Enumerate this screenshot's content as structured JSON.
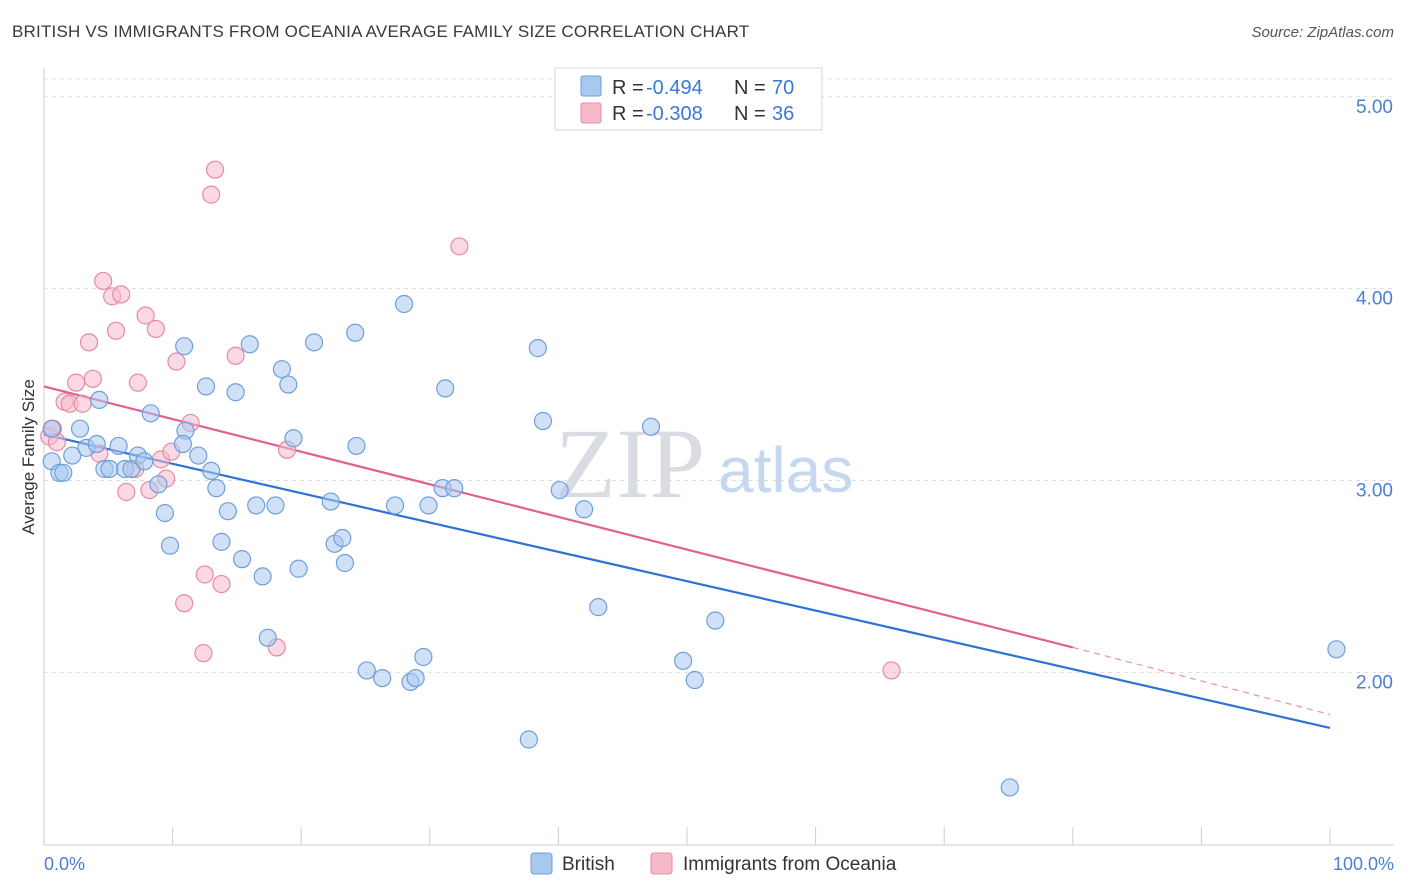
{
  "title": "BRITISH VS IMMIGRANTS FROM OCEANIA AVERAGE FAMILY SIZE CORRELATION CHART",
  "source": "Source: ZipAtlas.com",
  "watermark": {
    "zip": "ZIP",
    "atlas": "atlas"
  },
  "legend_top": {
    "rows": [
      {
        "r_label": "R = ",
        "r_value": "-0.494",
        "n_label": "N = ",
        "n_value": "70"
      },
      {
        "r_label": "R = ",
        "r_value": "-0.308",
        "n_label": "N = ",
        "n_value": "36"
      }
    ]
  },
  "colors": {
    "british_fill": "#a9c8f0",
    "british_stroke": "#6f9fd8",
    "british_line": "#2f72d4",
    "oceania_fill": "#f6b9ca",
    "oceania_stroke": "#e88aa6",
    "oceania_line": "#e0608e",
    "grid": "#d8dde5",
    "tick_label": "#4a7fd0"
  },
  "chart_data": {
    "type": "scatter",
    "title": "BRITISH VS IMMIGRANTS FROM OCEANIA AVERAGE FAMILY SIZE CORRELATION CHART",
    "xlabel": "",
    "ylabel": "Average Family Size",
    "xlim": [
      0,
      100
    ],
    "ylim": [
      1.1,
      5.15
    ],
    "x_tick_labels": [
      "0.0%",
      "100.0%"
    ],
    "y_ticks": [
      2.0,
      3.0,
      4.0,
      5.0
    ],
    "y_tick_labels": [
      "2.00",
      "3.00",
      "4.00",
      "5.00"
    ],
    "grid": true,
    "legend_position": "top-center",
    "series": [
      {
        "name": "British",
        "r": -0.494,
        "n": 70,
        "trend": {
          "x0": 0,
          "y0": 3.24,
          "x1": 100,
          "y1": 1.71
        },
        "points": [
          [
            0.6,
            3.27
          ],
          [
            0.6,
            3.1
          ],
          [
            1.2,
            3.04
          ],
          [
            1.5,
            3.04
          ],
          [
            2.2,
            3.13
          ],
          [
            2.8,
            3.27
          ],
          [
            3.3,
            3.17
          ],
          [
            4.1,
            3.19
          ],
          [
            4.3,
            3.42
          ],
          [
            4.7,
            3.06
          ],
          [
            5.1,
            3.06
          ],
          [
            5.8,
            3.18
          ],
          [
            6.3,
            3.06
          ],
          [
            6.8,
            3.06
          ],
          [
            7.3,
            3.13
          ],
          [
            7.8,
            3.1
          ],
          [
            8.3,
            3.35
          ],
          [
            8.9,
            2.98
          ],
          [
            9.4,
            2.83
          ],
          [
            9.8,
            2.66
          ],
          [
            10.9,
            3.7
          ],
          [
            11.0,
            3.26
          ],
          [
            10.8,
            3.19
          ],
          [
            12.0,
            3.13
          ],
          [
            12.6,
            3.49
          ],
          [
            13.0,
            3.05
          ],
          [
            13.4,
            2.96
          ],
          [
            13.8,
            2.68
          ],
          [
            14.3,
            2.84
          ],
          [
            14.9,
            3.46
          ],
          [
            15.4,
            2.59
          ],
          [
            16.0,
            3.71
          ],
          [
            16.5,
            2.87
          ],
          [
            17.0,
            2.5
          ],
          [
            17.4,
            2.18
          ],
          [
            18.0,
            2.87
          ],
          [
            18.5,
            3.58
          ],
          [
            19.0,
            3.5
          ],
          [
            19.4,
            3.22
          ],
          [
            19.8,
            2.54
          ],
          [
            21.0,
            3.72
          ],
          [
            22.3,
            2.89
          ],
          [
            22.6,
            2.67
          ],
          [
            23.2,
            2.7
          ],
          [
            23.4,
            2.57
          ],
          [
            24.2,
            3.77
          ],
          [
            24.3,
            3.18
          ],
          [
            25.1,
            2.01
          ],
          [
            26.3,
            1.97
          ],
          [
            27.3,
            2.87
          ],
          [
            28.0,
            3.92
          ],
          [
            28.5,
            1.95
          ],
          [
            28.9,
            1.97
          ],
          [
            29.5,
            2.08
          ],
          [
            29.9,
            2.87
          ],
          [
            31.0,
            2.96
          ],
          [
            31.2,
            3.48
          ],
          [
            31.9,
            2.96
          ],
          [
            37.7,
            1.65
          ],
          [
            38.4,
            3.69
          ],
          [
            38.8,
            3.31
          ],
          [
            40.1,
            2.95
          ],
          [
            42.0,
            2.85
          ],
          [
            43.1,
            2.34
          ],
          [
            47.2,
            3.28
          ],
          [
            49.7,
            2.06
          ],
          [
            50.6,
            1.96
          ],
          [
            52.2,
            2.27
          ],
          [
            75.1,
            1.4
          ],
          [
            100.5,
            2.12
          ]
        ]
      },
      {
        "name": "Immigrants from Oceania",
        "r": -0.308,
        "n": 36,
        "trend": {
          "x0": 0,
          "y0": 3.49,
          "x1": 80,
          "y1": 2.13,
          "x_dash_end": 100,
          "y_dash_end": 1.78
        },
        "points": [
          [
            0.4,
            3.23
          ],
          [
            0.7,
            3.27
          ],
          [
            1.0,
            3.2
          ],
          [
            1.6,
            3.41
          ],
          [
            2.0,
            3.4
          ],
          [
            2.5,
            3.51
          ],
          [
            3.0,
            3.4
          ],
          [
            3.5,
            3.72
          ],
          [
            3.8,
            3.53
          ],
          [
            4.3,
            3.14
          ],
          [
            4.6,
            4.04
          ],
          [
            5.3,
            3.96
          ],
          [
            5.6,
            3.78
          ],
          [
            6.0,
            3.97
          ],
          [
            6.4,
            2.94
          ],
          [
            7.1,
            3.06
          ],
          [
            7.3,
            3.51
          ],
          [
            7.9,
            3.86
          ],
          [
            8.2,
            2.95
          ],
          [
            8.7,
            3.79
          ],
          [
            9.1,
            3.11
          ],
          [
            9.5,
            3.01
          ],
          [
            9.9,
            3.15
          ],
          [
            10.3,
            3.62
          ],
          [
            10.9,
            2.36
          ],
          [
            11.4,
            3.3
          ],
          [
            12.4,
            2.1
          ],
          [
            12.5,
            2.51
          ],
          [
            13.0,
            4.49
          ],
          [
            13.3,
            4.62
          ],
          [
            13.8,
            2.46
          ],
          [
            14.9,
            3.65
          ],
          [
            18.1,
            2.13
          ],
          [
            18.9,
            3.16
          ],
          [
            32.3,
            4.22
          ],
          [
            65.9,
            2.01
          ]
        ]
      }
    ]
  },
  "bottom_legend": [
    "British",
    "Immigrants from Oceania"
  ]
}
